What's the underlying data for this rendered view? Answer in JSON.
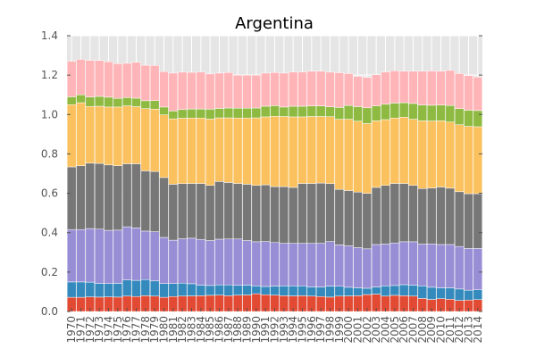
{
  "chart_data": {
    "type": "bar",
    "stacked": true,
    "title": "Argentina",
    "xlabel": "",
    "ylabel": "",
    "ylim": [
      0,
      1.4
    ],
    "yticks": [
      0.0,
      0.2,
      0.4,
      0.6,
      0.8,
      1.0,
      1.2,
      1.4
    ],
    "ytick_labels": [
      "0.0",
      "0.2",
      "0.4",
      "0.6",
      "0.8",
      "1.0",
      "1.2",
      "1.4"
    ],
    "grid": true,
    "background": "#e5e5e5",
    "categories": [
      "1970",
      "1971",
      "1972",
      "1973",
      "1974",
      "1975",
      "1976",
      "1977",
      "1978",
      "1979",
      "1980",
      "1981",
      "1982",
      "1983",
      "1984",
      "1985",
      "1986",
      "1987",
      "1988",
      "1989",
      "1990",
      "1991",
      "1992",
      "1993",
      "1994",
      "1995",
      "1996",
      "1997",
      "1998",
      "1999",
      "2000",
      "2001",
      "2002",
      "2003",
      "2004",
      "2005",
      "2006",
      "2007",
      "2008",
      "2009",
      "2010",
      "2011",
      "2012",
      "2013",
      "2014"
    ],
    "series": [
      {
        "color": "#e24a33",
        "values": [
          0.072,
          0.072,
          0.074,
          0.073,
          0.074,
          0.073,
          0.078,
          0.076,
          0.08,
          0.078,
          0.072,
          0.076,
          0.078,
          0.079,
          0.08,
          0.082,
          0.083,
          0.08,
          0.083,
          0.084,
          0.09,
          0.085,
          0.083,
          0.08,
          0.079,
          0.08,
          0.078,
          0.076,
          0.073,
          0.078,
          0.079,
          0.08,
          0.086,
          0.088,
          0.078,
          0.082,
          0.08,
          0.078,
          0.066,
          0.061,
          0.065,
          0.062,
          0.056,
          0.058,
          0.06
        ]
      },
      {
        "color": "#348abd",
        "values": [
          0.078,
          0.078,
          0.075,
          0.07,
          0.068,
          0.07,
          0.082,
          0.082,
          0.082,
          0.077,
          0.07,
          0.066,
          0.066,
          0.062,
          0.054,
          0.05,
          0.052,
          0.055,
          0.05,
          0.05,
          0.04,
          0.042,
          0.046,
          0.05,
          0.051,
          0.05,
          0.047,
          0.048,
          0.056,
          0.05,
          0.044,
          0.04,
          0.032,
          0.036,
          0.052,
          0.05,
          0.056,
          0.056,
          0.064,
          0.062,
          0.055,
          0.058,
          0.058,
          0.05,
          0.05
        ]
      },
      {
        "color": "#988ed5",
        "values": [
          0.266,
          0.266,
          0.272,
          0.275,
          0.27,
          0.27,
          0.27,
          0.266,
          0.246,
          0.25,
          0.234,
          0.22,
          0.225,
          0.231,
          0.232,
          0.228,
          0.232,
          0.233,
          0.235,
          0.226,
          0.224,
          0.228,
          0.221,
          0.216,
          0.216,
          0.216,
          0.221,
          0.222,
          0.226,
          0.21,
          0.21,
          0.204,
          0.2,
          0.216,
          0.212,
          0.216,
          0.218,
          0.22,
          0.212,
          0.22,
          0.22,
          0.22,
          0.216,
          0.212,
          0.21
        ]
      },
      {
        "color": "#777777",
        "values": [
          0.318,
          0.324,
          0.332,
          0.334,
          0.332,
          0.327,
          0.32,
          0.326,
          0.306,
          0.306,
          0.304,
          0.284,
          0.28,
          0.278,
          0.284,
          0.28,
          0.293,
          0.287,
          0.282,
          0.286,
          0.286,
          0.288,
          0.284,
          0.288,
          0.284,
          0.304,
          0.304,
          0.306,
          0.294,
          0.282,
          0.281,
          0.282,
          0.282,
          0.29,
          0.298,
          0.302,
          0.296,
          0.286,
          0.282,
          0.284,
          0.292,
          0.286,
          0.278,
          0.278,
          0.278
        ]
      },
      {
        "color": "#fbc15e",
        "values": [
          0.316,
          0.32,
          0.288,
          0.29,
          0.294,
          0.298,
          0.294,
          0.29,
          0.316,
          0.316,
          0.318,
          0.332,
          0.332,
          0.332,
          0.332,
          0.337,
          0.323,
          0.328,
          0.332,
          0.336,
          0.343,
          0.345,
          0.357,
          0.356,
          0.358,
          0.338,
          0.34,
          0.338,
          0.34,
          0.356,
          0.362,
          0.36,
          0.354,
          0.338,
          0.334,
          0.332,
          0.336,
          0.336,
          0.344,
          0.34,
          0.336,
          0.336,
          0.34,
          0.342,
          0.34
        ]
      },
      {
        "color": "#8eba42",
        "values": [
          0.04,
          0.04,
          0.048,
          0.05,
          0.05,
          0.044,
          0.042,
          0.043,
          0.04,
          0.044,
          0.04,
          0.04,
          0.044,
          0.046,
          0.046,
          0.05,
          0.048,
          0.05,
          0.05,
          0.05,
          0.05,
          0.054,
          0.054,
          0.048,
          0.054,
          0.054,
          0.054,
          0.054,
          0.05,
          0.06,
          0.07,
          0.074,
          0.08,
          0.076,
          0.078,
          0.076,
          0.074,
          0.08,
          0.08,
          0.08,
          0.08,
          0.084,
          0.082,
          0.082,
          0.082
        ]
      },
      {
        "color": "#ffb5b8",
        "values": [
          0.18,
          0.18,
          0.186,
          0.182,
          0.18,
          0.176,
          0.174,
          0.182,
          0.18,
          0.178,
          0.18,
          0.192,
          0.19,
          0.186,
          0.188,
          0.179,
          0.179,
          0.18,
          0.168,
          0.168,
          0.167,
          0.168,
          0.168,
          0.172,
          0.174,
          0.174,
          0.176,
          0.176,
          0.176,
          0.176,
          0.162,
          0.154,
          0.154,
          0.158,
          0.164,
          0.164,
          0.16,
          0.164,
          0.172,
          0.174,
          0.172,
          0.178,
          0.178,
          0.176,
          0.17
        ]
      }
    ]
  }
}
